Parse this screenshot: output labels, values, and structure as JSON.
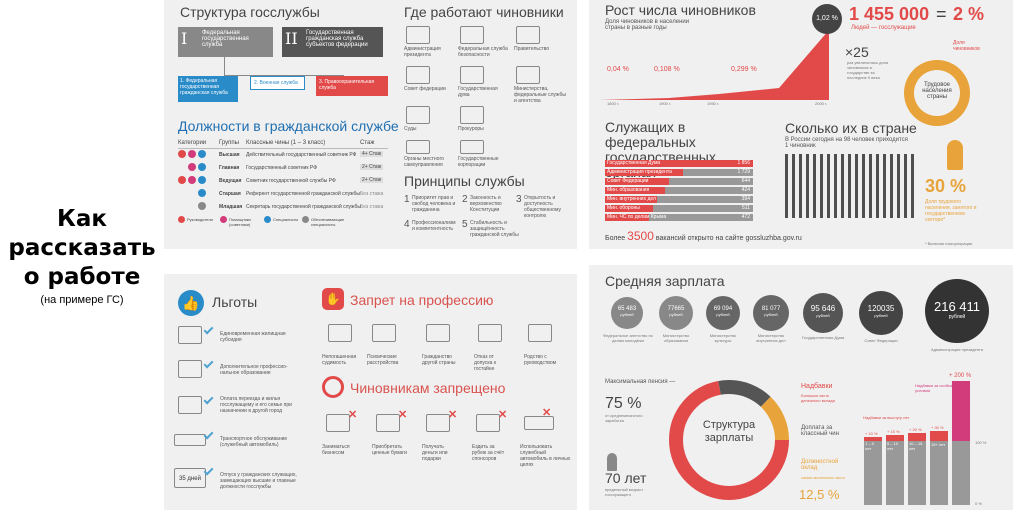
{
  "intro": {
    "title_lines": [
      "Как",
      "рассказать",
      "о работе"
    ],
    "subtitle": "(на примере ГС)"
  },
  "p1": {
    "title": "Структура госслужбы",
    "box1": {
      "num": "I",
      "text": "Федеральная государственная служба"
    },
    "box2": {
      "num": "II",
      "text": "Государственная гражданская служба субъектов федерации"
    },
    "sub": [
      "1. Федеральная государственная гражданская служба",
      "2. Военная служба",
      "3. Правоохранительная служба"
    ],
    "where_title": "Где работают чиновники",
    "where": [
      "Администрация президента",
      "Федеральная служба безопасности",
      "Правительство",
      "Совет федерации",
      "Государственная дума",
      "Министерства, федеральные службы и агентства",
      "Суды",
      "Прокуроры",
      "Органы местного самоуправления",
      "Государственные корпорации"
    ],
    "pos_title": "Должности в гражданской службе",
    "cols": [
      "Категории",
      "Группы",
      "Классные чины (1 – 3 класс)",
      "Стаж"
    ],
    "groups": [
      "Высшая",
      "Главная",
      "Ведущая",
      "Старшая",
      "Младшая"
    ],
    "ranks": [
      "Действительный государственный советник РФ",
      "Государственный советник РФ",
      "Советник государственной службы РФ",
      "Референт государственной гражданской службы",
      "Секретарь государственной гражданской службы"
    ],
    "stazh": [
      "4+ Стаж",
      "2+ Стаж",
      "2+ Стаж",
      "Без стажа",
      "Без стажа"
    ],
    "legend": [
      "Руководители",
      "Помощники (советники)",
      "Специалисты",
      "Обеспечивающие специалисты"
    ],
    "principles_title": "Принципы службы",
    "principles": [
      "Приоритет прав и свобод человека и гражданина",
      "Законность и верховенство Конституции",
      "Открытость и доступность общественному контролю",
      "Профессионализм и компетентность",
      "Стабильность и защищённость гражданской службы"
    ],
    "nums": [
      "1",
      "2",
      "3",
      "4",
      "5"
    ]
  },
  "p2": {
    "growth_title": "Рост числа чиновников",
    "growth_sub": "Доля чиновников в населении страны в разные годы",
    "pcts": [
      "0,04 %",
      "0,108 %",
      "0,299 %"
    ],
    "years": [
      "1800 г.",
      "1900 г.",
      "1950 г.",
      "2000 г."
    ],
    "peak": "1,02 %",
    "big_num": "1 455 000",
    "eq": "=",
    "big_pct": "2 %",
    "big_sub": "Людей — госслужащие",
    "times": "×25",
    "times_note": "раз увеличилась доля чиновников в государстве за последние II века",
    "share_label": "Доля чиновников",
    "donut_label": "Трудовое населения страны",
    "pct30": "30 %",
    "pct30_note": "Доля трудового населения, занятого в государственном секторе*",
    "fed_title": "Служащих в федеральных государственных органах",
    "bars": [
      {
        "label": "Государственная Дума",
        "v": "1 856"
      },
      {
        "label": "Администрация президента",
        "v": "1 729"
      },
      {
        "label": "Совет Федерации",
        "v": "644"
      },
      {
        "label": "Мин. образования",
        "v": "424"
      },
      {
        "label": "Мин. внутренних дел",
        "v": "394"
      },
      {
        "label": "Мин. обороны",
        "v": "511"
      },
      {
        "label": "Мин. ЧС по делам Крыма",
        "v": "472"
      }
    ],
    "vac_pre": "Более",
    "vac_num": "3500",
    "vac_post": "вакансий открыто на сайте gossluzhba.gov.ru",
    "count_title": "Сколько их в стране",
    "count_sub": "В России сегодня на 98 человек приходится 1 чиновник",
    "footnote": "* Включая госкорпорации"
  },
  "p3": {
    "benefits_title": "Льготы",
    "benefits": [
      "Единовременная жилищная субсидия",
      "Дополнительное профессио-нальное образование",
      "Оплата переезда и жилья госслужащему и его семье при назначении в другой город",
      "Транспортное обслуживание (служебный автомобиль)",
      "Отпуск у гражданских служащих, замещающих высшие и главные должности госслужбы"
    ],
    "days": "35 дней",
    "ban_title": "Запрет на профессию",
    "bans": [
      "Непогашенная судимость",
      "Психические расстройства",
      "Гражданство другой страны",
      "Отказ от допуска к гостайне",
      "Родство с руководством"
    ],
    "forbid_title": "Чиновникам запрещено",
    "forbids": [
      "Заниматься бизнесом",
      "Приобретать ценные бумаги",
      "Получать деньги или подарки",
      "Ездить за рубеж за счёт спонсоров",
      "Использовать служебный автомобиль в личных целях"
    ]
  },
  "p4": {
    "title": "Средняя зарплата",
    "salaries": [
      {
        "v": "65 483",
        "u": "рублей",
        "l": "Федеральное агентство по делам молодёжи"
      },
      {
        "v": "77665",
        "u": "рублей",
        "l": "Министерство образования"
      },
      {
        "v": "69 094",
        "u": "рублей",
        "l": "Министерство культуры"
      },
      {
        "v": "81 077",
        "u": "рублей",
        "l": "Министерство внутренних дел"
      },
      {
        "v": "95 646",
        "u": "рублей",
        "l": "Государственная Дума"
      },
      {
        "v": "120035",
        "u": "рублей",
        "l": "Совет Федерации"
      },
      {
        "v": "216 411",
        "u": "рублей",
        "l": "Администрация президента"
      }
    ],
    "pension_label": "Максимальная пенсия —",
    "pension": "75 %",
    "pension_note": "от среднемесячного заработка",
    "age": "70 лет",
    "age_note": "предельный возраст госслужащего",
    "donut": "Структура зарплаты",
    "addons": "Надбавки",
    "addons_note": "Большая часть денежного вклада",
    "base": "Доплата за классный чин",
    "salary": "Должностной оклад",
    "salary_note": "самая маленькая часть",
    "p125": "12,5 %",
    "plus200": "+ 200 %",
    "step1": "Надбавки за выслугу лет",
    "step2": "Надбавки за особые условия",
    "steps": [
      "+ 10 %",
      "+ 15 %",
      "+ 20 %",
      "+ 30 %"
    ],
    "yrs": [
      "1 – 5 лет",
      "5 – 10 лет",
      "10 – 15 лет",
      "15+ лет"
    ],
    "axis": [
      "100 %",
      "0 %"
    ]
  },
  "colors": {
    "red": "#e24a4a",
    "blue": "#1f6fb2",
    "dark": "#444",
    "orange": "#e8a33a",
    "magenta": "#d23c7a"
  }
}
